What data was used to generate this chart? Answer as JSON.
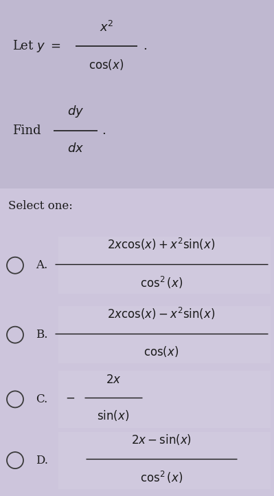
{
  "background_color": "#cdc5dc",
  "question_box_color": "#bfb8d0",
  "option_box_color": "#d0c9de",
  "text_color": "#1a1a1a",
  "fig_width": 3.99,
  "fig_height": 7.21,
  "select_one": "Select one:",
  "options": [
    {
      "label": "A.",
      "num": "$2x\\cos(x) + x^2\\sin(x)$",
      "den": "$\\cos^2(x)$"
    },
    {
      "label": "B.",
      "num": "$2x\\cos(x) - x^2\\sin(x)$",
      "den": "$\\cos(x)$"
    },
    {
      "label": "C.",
      "num": "$2x$",
      "den": "$\\sin(x)$",
      "negative": true
    },
    {
      "label": "D.",
      "num": "$2x - \\sin(x)$",
      "den": "$\\cos^2(x)$"
    }
  ]
}
